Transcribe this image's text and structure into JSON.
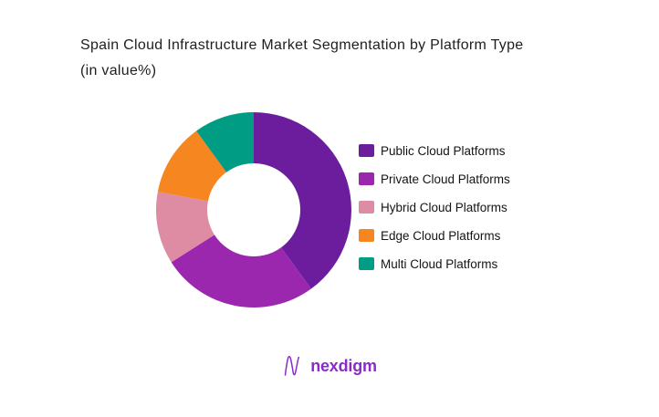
{
  "page": {
    "background": "#ffffff"
  },
  "header": {
    "title_line1": "Spain Cloud Infrastructure Market Segmentation by Platform Type",
    "title_line2": "(in value%)"
  },
  "chart_data": {
    "type": "pie",
    "subtype": "donut",
    "title": "Spain Cloud Infrastructure Market Segmentation by Platform Type (in value%)",
    "unit": "value %",
    "categories": [
      "Public Cloud Platforms",
      "Private Cloud Platforms",
      "Hybrid Cloud Platforms",
      "Edge Cloud Platforms",
      "Multi Cloud Platforms"
    ],
    "values": [
      40,
      26,
      12,
      12,
      10
    ],
    "colors": [
      "#6B1D9E",
      "#9B27AF",
      "#DE8CA3",
      "#F6861F",
      "#009C84"
    ],
    "start_angle_deg": 0,
    "direction": "clockwise",
    "inner_radius_ratio": 0.477,
    "legend_position": "right",
    "data_labels": "none"
  },
  "footer": {
    "brand": "nexdigm",
    "brand_color": "#8A2BC9"
  }
}
